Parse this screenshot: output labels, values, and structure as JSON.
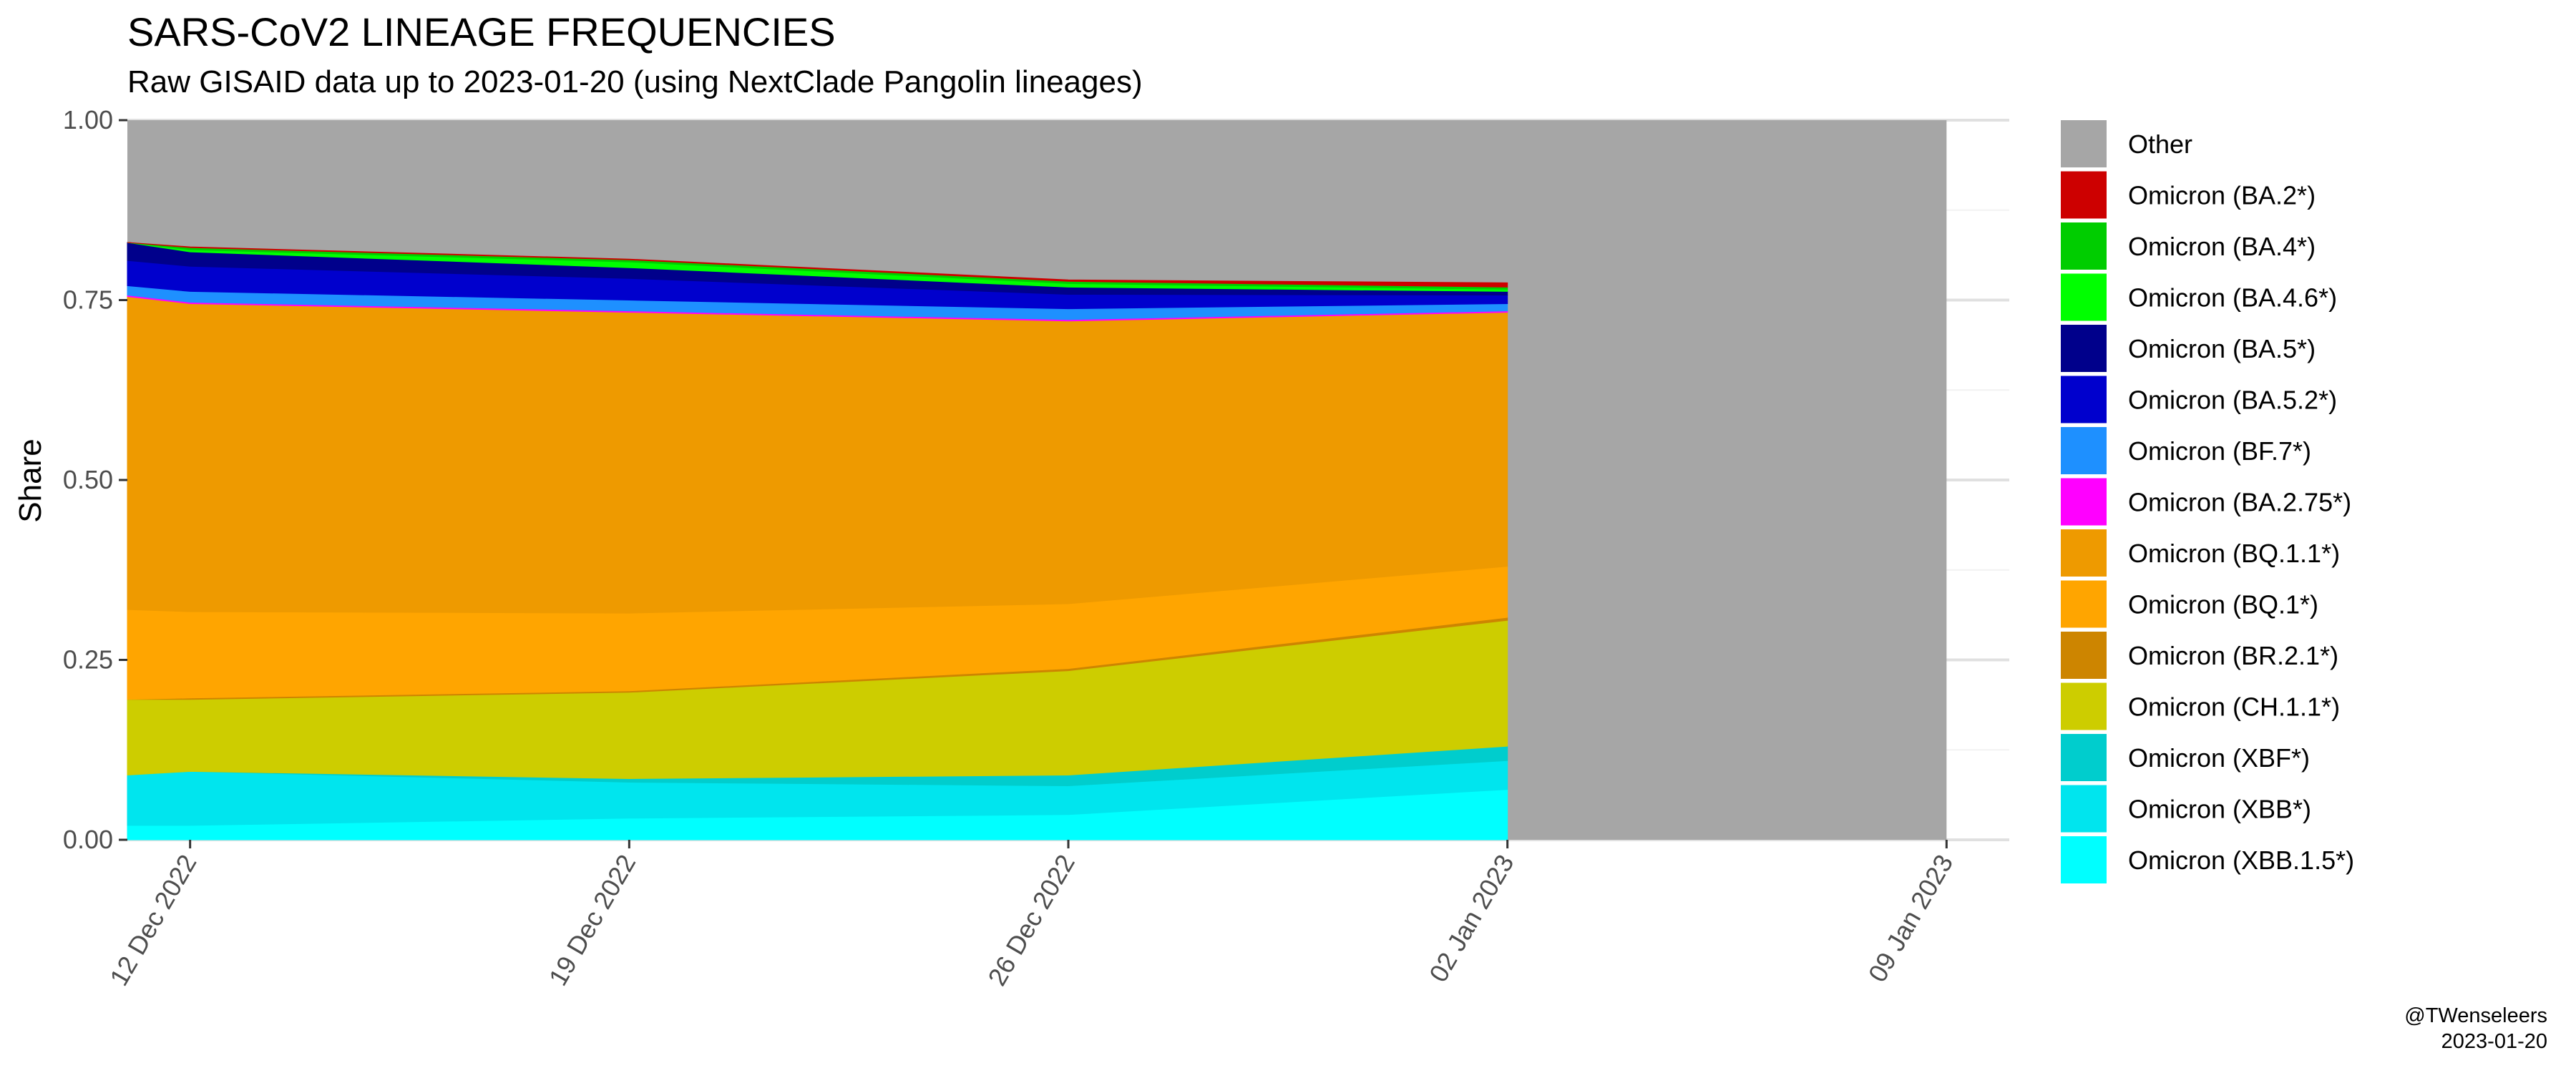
{
  "title": "SARS-CoV2 LINEAGE FREQUENCIES",
  "subtitle": "Raw GISAID data up to 2023-01-20 (using NextClade Pangolin lineages)",
  "caption": {
    "author": "@TWenseleers",
    "date": "2023-01-20"
  },
  "chart_data": {
    "type": "area",
    "stacked": true,
    "ylabel": "Share",
    "xlabel": "",
    "ylim": [
      0,
      1
    ],
    "xlim": [
      "2022-12-11",
      "2023-01-10"
    ],
    "data_end": "2023-01-02",
    "yticks": [
      0,
      0.25,
      0.5,
      0.75,
      1
    ],
    "ytick_labels": [
      "0.00",
      "0.25",
      "0.50",
      "0.75",
      "1.00"
    ],
    "xticks": [
      "2022-12-12",
      "2022-12-19",
      "2022-12-26",
      "2023-01-02",
      "2023-01-09"
    ],
    "xtick_labels": [
      "12 Dec 2022",
      "19 Dec 2022",
      "26 Dec 2022",
      "02 Jan 2023",
      "09 Jan 2023"
    ],
    "x": [
      "2022-12-11",
      "2022-12-12",
      "2022-12-19",
      "2022-12-26",
      "2023-01-02"
    ],
    "background_fill": "Other",
    "grid": true,
    "legend_position": "right",
    "series": [
      {
        "name": "Omicron (XBB.1.5*)",
        "color": "#00FFFF",
        "values": [
          0.02,
          0.02,
          0.03,
          0.035,
          0.07
        ]
      },
      {
        "name": "Omicron (XBB*)",
        "color": "#00E5EE",
        "values": [
          0.07,
          0.075,
          0.05,
          0.04,
          0.04
        ]
      },
      {
        "name": "Omicron (XBF*)",
        "color": "#00CDCD",
        "values": [
          0.0,
          0.0,
          0.005,
          0.015,
          0.02
        ]
      },
      {
        "name": "Omicron (CH.1.1*)",
        "color": "#CDCD00",
        "values": [
          0.105,
          0.1,
          0.12,
          0.145,
          0.175
        ]
      },
      {
        "name": "Omicron (BR.2.1*)",
        "color": "#CD8500",
        "values": [
          0.0,
          0.002,
          0.002,
          0.003,
          0.004
        ]
      },
      {
        "name": "Omicron (BQ.1*)",
        "color": "#FFA500",
        "values": [
          0.125,
          0.12,
          0.108,
          0.09,
          0.071
        ]
      },
      {
        "name": "Omicron (BQ.1.1*)",
        "color": "#EE9A00",
        "values": [
          0.435,
          0.428,
          0.418,
          0.393,
          0.353
        ]
      },
      {
        "name": "Omicron (BA.2.75*)",
        "color": "#FF00FF",
        "values": [
          0.002,
          0.002,
          0.002,
          0.002,
          0.002
        ]
      },
      {
        "name": "Omicron (BF.7*)",
        "color": "#1E90FF",
        "values": [
          0.013,
          0.015,
          0.015,
          0.015,
          0.01
        ]
      },
      {
        "name": "Omicron (BA.5.2*)",
        "color": "#0000CD",
        "values": [
          0.035,
          0.035,
          0.03,
          0.02,
          0.012
        ]
      },
      {
        "name": "Omicron (BA.5*)",
        "color": "#00008B",
        "values": [
          0.025,
          0.02,
          0.015,
          0.01,
          0.005
        ]
      },
      {
        "name": "Omicron (BA.4.6*)",
        "color": "#00FF00",
        "values": [
          0.0,
          0.003,
          0.008,
          0.005,
          0.003
        ]
      },
      {
        "name": "Omicron (BA.4*)",
        "color": "#00CD00",
        "values": [
          0.0,
          0.003,
          0.003,
          0.003,
          0.003
        ]
      },
      {
        "name": "Omicron (BA.2*)",
        "color": "#CD0000",
        "values": [
          0.0,
          0.001,
          0.001,
          0.002,
          0.006
        ]
      },
      {
        "name": "Other",
        "color": "#A6A6A6",
        "values": [
          0.18,
          0.177,
          0.195,
          0.222,
          0.226
        ]
      }
    ],
    "legend": [
      {
        "name": "Other",
        "color": "#A6A6A6"
      },
      {
        "name": "Omicron (BA.2*)",
        "color": "#CD0000"
      },
      {
        "name": "Omicron (BA.4*)",
        "color": "#00CD00"
      },
      {
        "name": "Omicron (BA.4.6*)",
        "color": "#00FF00"
      },
      {
        "name": "Omicron (BA.5*)",
        "color": "#00008B"
      },
      {
        "name": "Omicron (BA.5.2*)",
        "color": "#0000CD"
      },
      {
        "name": "Omicron (BF.7*)",
        "color": "#1E90FF"
      },
      {
        "name": "Omicron (BA.2.75*)",
        "color": "#FF00FF"
      },
      {
        "name": "Omicron (BQ.1.1*)",
        "color": "#EE9A00"
      },
      {
        "name": "Omicron (BQ.1*)",
        "color": "#FFA500"
      },
      {
        "name": "Omicron (BR.2.1*)",
        "color": "#CD8500"
      },
      {
        "name": "Omicron (CH.1.1*)",
        "color": "#CDCD00"
      },
      {
        "name": "Omicron (XBF*)",
        "color": "#00CDCD"
      },
      {
        "name": "Omicron (XBB*)",
        "color": "#00E5EE"
      },
      {
        "name": "Omicron (XBB.1.5*)",
        "color": "#00FFFF"
      }
    ]
  }
}
